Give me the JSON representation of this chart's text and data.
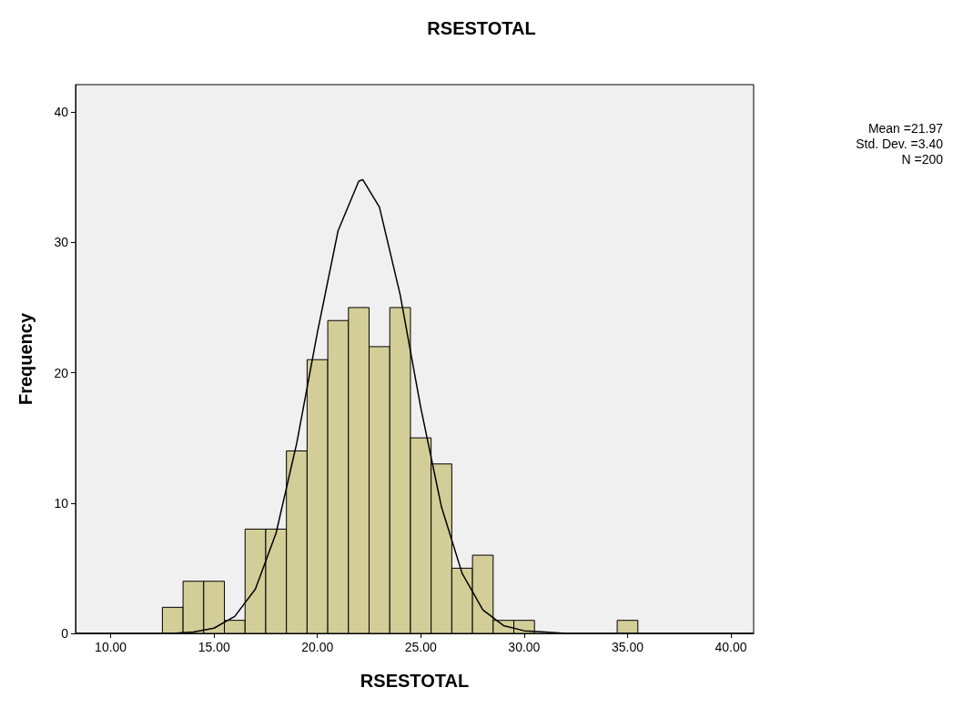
{
  "chart_data": {
    "type": "histogram",
    "title": "RSESTOTAL",
    "xlabel": "RSESTOTAL",
    "ylabel": "Frequency",
    "bins": [
      12.5,
      13.5,
      14.5,
      15.5,
      16.5,
      17.5,
      18.5,
      19.5,
      20.5,
      21.5,
      22.5,
      23.5,
      24.5,
      25.5,
      26.5,
      27.5,
      28.5,
      29.5,
      30.5,
      31.5,
      32.5,
      33.5,
      34.5,
      35.5
    ],
    "values": [
      2,
      4,
      4,
      1,
      8,
      8,
      14,
      21,
      24,
      25,
      22,
      25,
      15,
      13,
      5,
      6,
      1,
      1,
      0,
      0,
      0,
      0,
      1
    ],
    "color": "#d3ce97",
    "series": [
      {
        "type": "line",
        "color": "#000000",
        "x": [
          8.3,
          13,
          14,
          15,
          16,
          17,
          18,
          19,
          20,
          21,
          22,
          22.2,
          23,
          24,
          25,
          26,
          27,
          28,
          29,
          30,
          31,
          32,
          41.1
        ],
        "values": [
          0,
          0,
          0.1,
          0.4,
          1.3,
          3.4,
          7.7,
          14.6,
          23.1,
          30.9,
          34.7,
          34.8,
          32.7,
          26,
          17.3,
          9.7,
          4.6,
          1.8,
          0.6,
          0.2,
          0.1,
          0,
          0
        ]
      }
    ],
    "xlim": [
      8.3,
      41.1
    ],
    "xticks": [
      {
        "value": 10,
        "label": "10.00"
      },
      {
        "value": 15,
        "label": "15.00"
      },
      {
        "value": 20,
        "label": "20.00"
      },
      {
        "value": 25,
        "label": "25.00"
      },
      {
        "value": 30,
        "label": "30.00"
      },
      {
        "value": 35,
        "label": "35.00"
      },
      {
        "value": 40,
        "label": "40.00"
      }
    ],
    "ylim": [
      0,
      42.1
    ],
    "yticks": [
      0,
      10,
      20,
      30,
      40
    ],
    "grid": false,
    "marker": "none",
    "annotations": [
      "Mean =21.97",
      "Std. Dev. =3.40",
      "N =200"
    ]
  }
}
